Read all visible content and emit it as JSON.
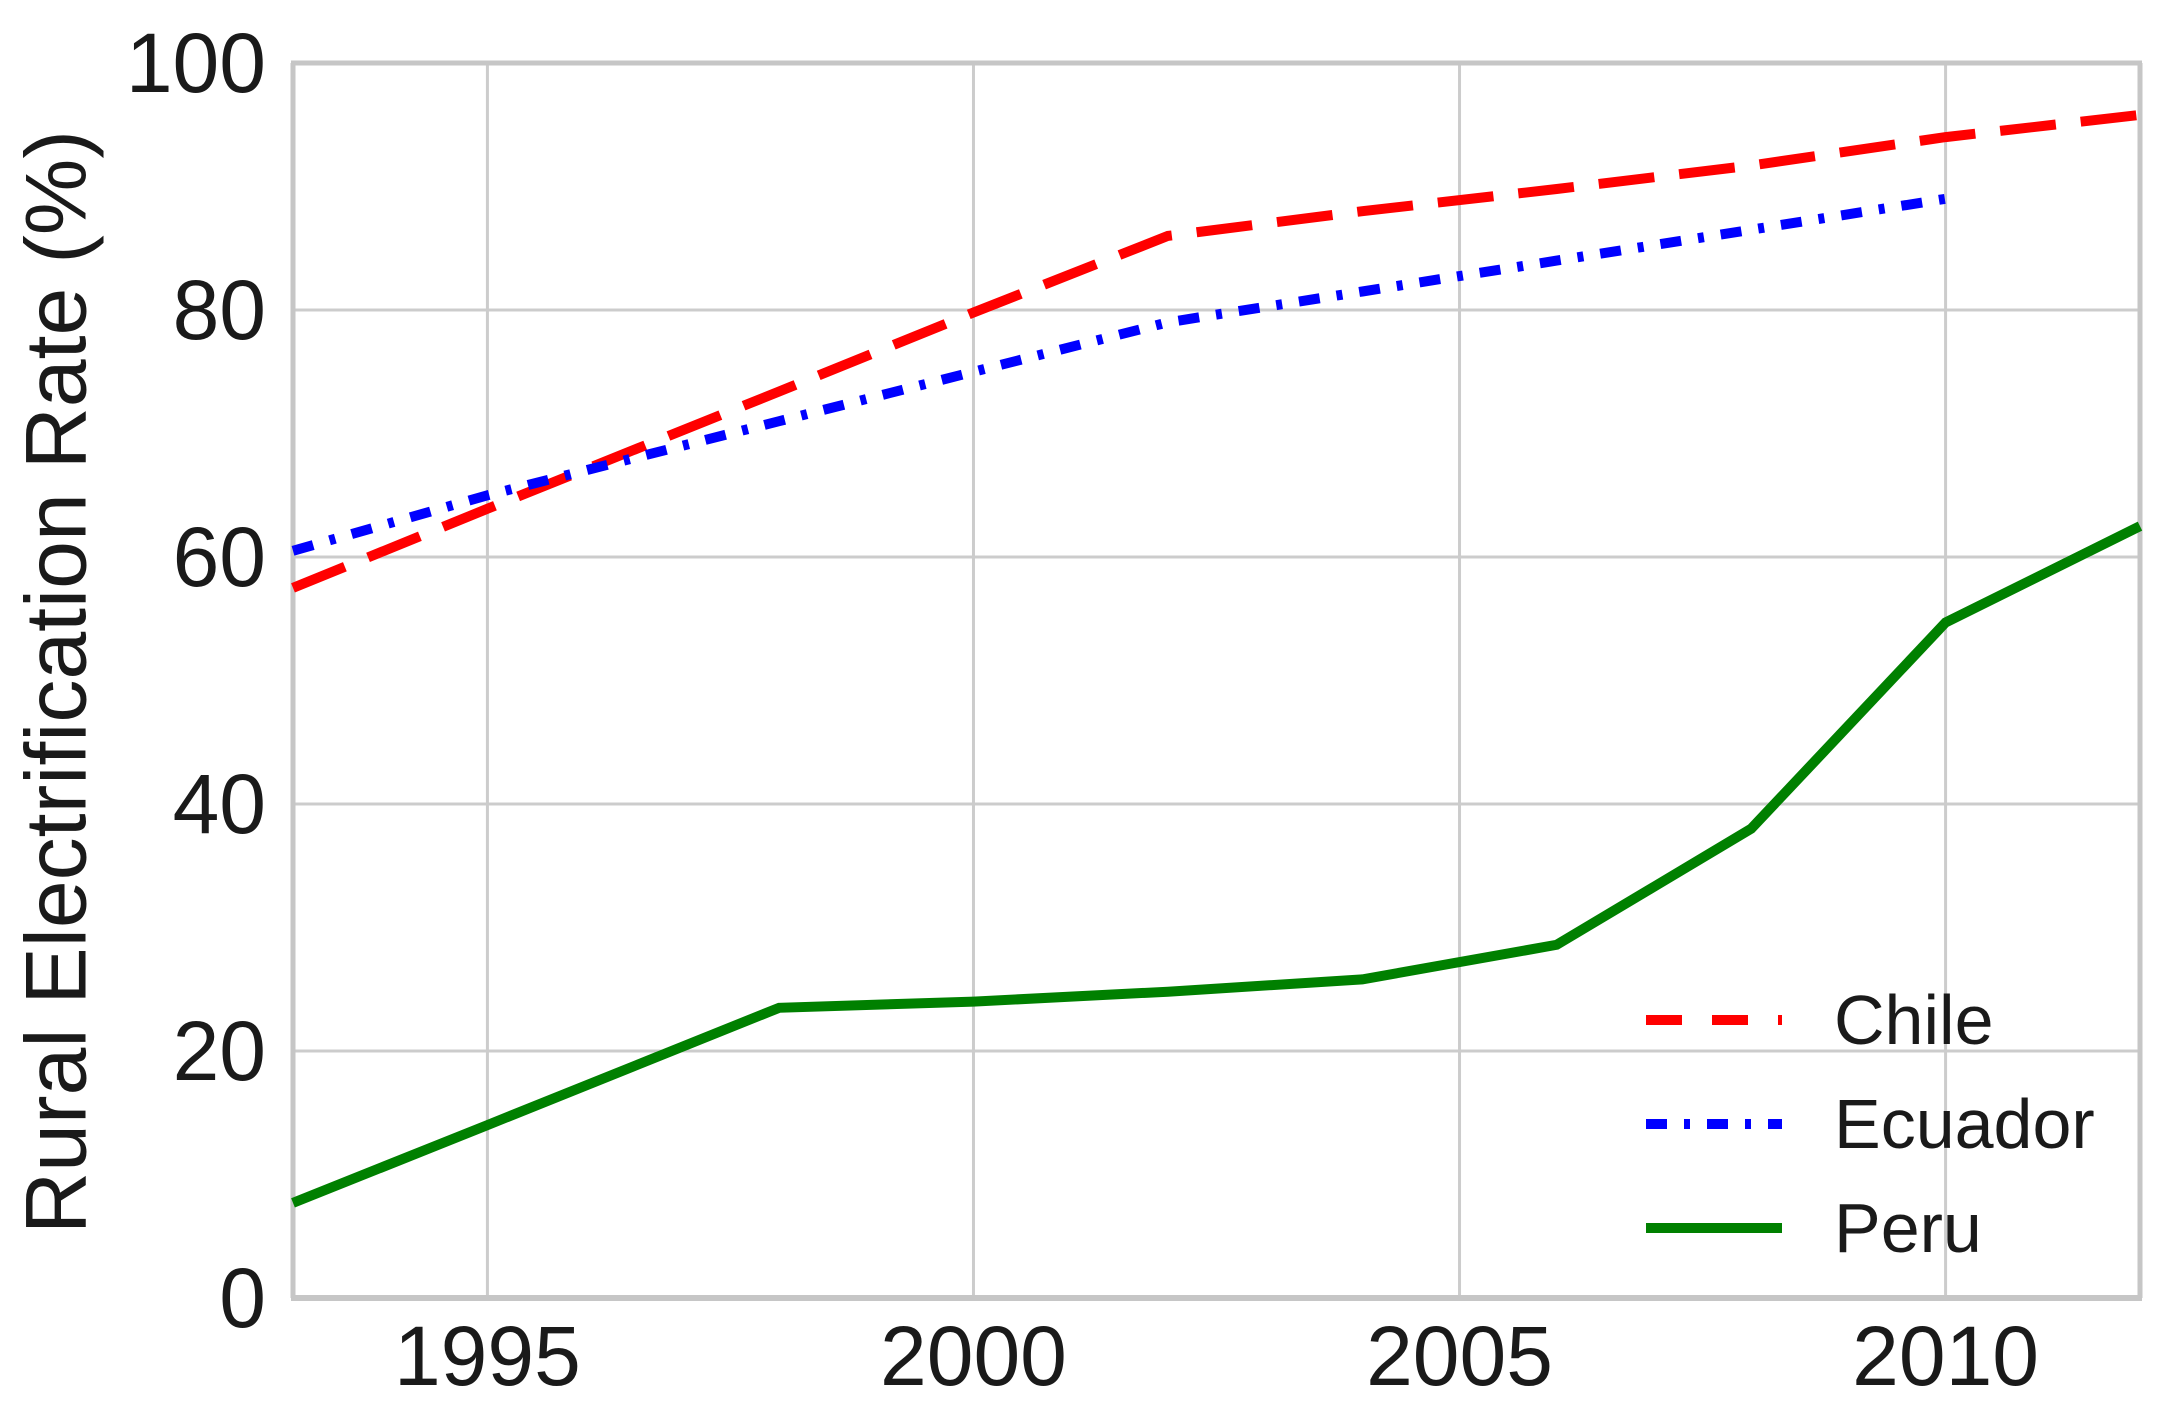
{
  "chart_data": {
    "type": "line",
    "title": "",
    "xlabel": "",
    "ylabel": "Rural Electrification Rate (%)",
    "xlim": [
      1993,
      2012
    ],
    "ylim": [
      0,
      100
    ],
    "xticks": [
      1995,
      2000,
      2005,
      2010
    ],
    "yticks": [
      0,
      20,
      40,
      60,
      80,
      100
    ],
    "grid": true,
    "legend_position": "lower right",
    "series": [
      {
        "name": "Chile",
        "color": "#ff0000",
        "style": "dashed",
        "x": [
          1993,
          1995,
          1998,
          2000,
          2002,
          2004,
          2006,
          2008,
          2010,
          2012
        ],
        "y": [
          57.5,
          63.9,
          73.4,
          79.8,
          86.0,
          88.0,
          89.8,
          91.7,
          94.0,
          95.8
        ]
      },
      {
        "name": "Ecuador",
        "color": "#0000ff",
        "style": "dashdot",
        "x": [
          1993,
          1995,
          1998,
          2000,
          2002,
          2004,
          2006,
          2008,
          2010
        ],
        "y": [
          60.5,
          65.0,
          71.0,
          75.0,
          79.0,
          81.5,
          84.0,
          86.5,
          89.0
        ]
      },
      {
        "name": "Peru",
        "color": "#008000",
        "style": "solid",
        "x": [
          1993,
          1995,
          1998,
          2000,
          2002,
          2004,
          2006,
          2008,
          2010,
          2012
        ],
        "y": [
          7.7,
          14.0,
          23.5,
          24.0,
          24.8,
          25.8,
          28.6,
          38.0,
          54.7,
          62.5
        ]
      }
    ]
  },
  "colors": {
    "grid": "#cccccc",
    "spine": "#c6c6c6",
    "text": "#1a1a1a",
    "background": "#ffffff"
  }
}
